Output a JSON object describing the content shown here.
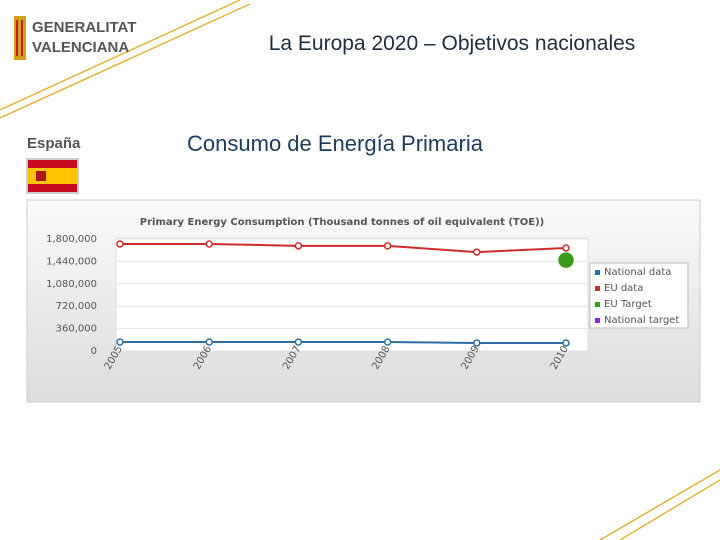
{
  "header": {
    "logo": [
      "GENERALITAT",
      "VALENCIANA"
    ],
    "title": "La Europa 2020 – Objetivos nacionales"
  },
  "country": "España",
  "subtitle": "Consumo de Energía Primaria",
  "chart_data": {
    "type": "line",
    "title": "Primary Energy Consumption (Thousand tonnes of oil equivalent (TOE))",
    "categories": [
      "2005",
      "2006",
      "2007",
      "2008",
      "2009",
      "2010"
    ],
    "series": [
      {
        "name": "National data",
        "color": "#2b6fa6",
        "values": [
          145000,
          145000,
          145000,
          145000,
          129000,
          129000
        ]
      },
      {
        "name": "EU data",
        "color": "#d02b2b",
        "values": [
          1720000,
          1720000,
          1690000,
          1690000,
          1590000,
          1655000
        ]
      },
      {
        "name": "EU Target",
        "color": "#3a9a1a",
        "values": [
          null,
          null,
          null,
          null,
          null,
          1460000
        ]
      },
      {
        "name": "National target",
        "color": "#8a2be2",
        "values": [
          null,
          null,
          null,
          null,
          null,
          null
        ]
      }
    ],
    "ylim": [
      0,
      1800000
    ],
    "yticks": [
      0,
      {
        "value": 360000,
        "label": "360,000"
      },
      {
        "value": 720000,
        "label": "720,000"
      },
      {
        "value": 1080000,
        "label": "1,080,000"
      },
      {
        "value": 1440000,
        "label": "1,440,000"
      },
      {
        "value": 1800000,
        "label": "1,800,000"
      }
    ],
    "grid": true,
    "legend": "right"
  }
}
